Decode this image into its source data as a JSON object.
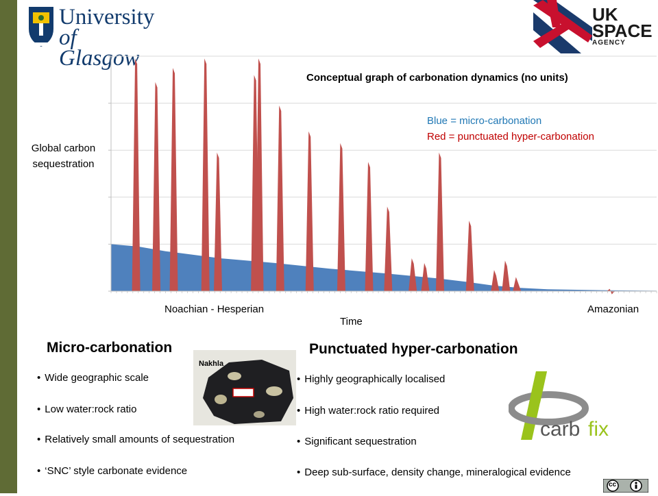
{
  "logos": {
    "uog_line1": "University",
    "uog_line2": "of Glasgow",
    "uk_space_line1": "UK",
    "uk_space_line2": "SPACE",
    "uk_space_line3": "AGENCY"
  },
  "image_labels": {
    "nakhla": "Nakhla"
  },
  "colors": {
    "sidebar": "#5f6b35",
    "micro": "#4f81bd",
    "hyper": "#c0504d",
    "legend_blue": "#1f77b4",
    "legend_red": "#c00000"
  },
  "chart_data": {
    "type": "area",
    "title": "Conceptual graph of carbonation dynamics (no units)",
    "ylabel": "Global carbon sequestration",
    "xlabel": "Time",
    "x_ticks": [
      "Noachian - Hesperian",
      "Amazonian"
    ],
    "legend": [
      "Blue = micro-carbonation",
      "Red = punctuated hyper-carbonation"
    ],
    "xlim": [
      0,
      100
    ],
    "ylim": [
      0,
      5
    ],
    "grid": true,
    "series": [
      {
        "name": "micro-carbonation",
        "points": [
          [
            0,
            1.0
          ],
          [
            5,
            0.95
          ],
          [
            10,
            0.85
          ],
          [
            20,
            0.7
          ],
          [
            30,
            0.6
          ],
          [
            40,
            0.48
          ],
          [
            50,
            0.38
          ],
          [
            60,
            0.27
          ],
          [
            65,
            0.2
          ],
          [
            70,
            0.12
          ],
          [
            75,
            0.07
          ],
          [
            80,
            0.04
          ],
          [
            90,
            0.02
          ],
          [
            100,
            0.01
          ]
        ]
      },
      {
        "name": "punctuated hyper-carbonation",
        "spikes": [
          {
            "x": 4.6,
            "y": 4.95
          },
          {
            "x": 8.3,
            "y": 4.45
          },
          {
            "x": 11.5,
            "y": 4.75
          },
          {
            "x": 17.3,
            "y": 4.95
          },
          {
            "x": 19.6,
            "y": 2.95
          },
          {
            "x": 26.4,
            "y": 4.6
          },
          {
            "x": 27.2,
            "y": 4.95
          },
          {
            "x": 31.0,
            "y": 3.95
          },
          {
            "x": 36.4,
            "y": 3.4
          },
          {
            "x": 42.2,
            "y": 3.15
          },
          {
            "x": 47.3,
            "y": 2.75
          },
          {
            "x": 50.8,
            "y": 1.8
          },
          {
            "x": 55.3,
            "y": 0.7
          },
          {
            "x": 57.6,
            "y": 0.6
          },
          {
            "x": 60.3,
            "y": 2.95
          },
          {
            "x": 65.8,
            "y": 1.5
          },
          {
            "x": 70.4,
            "y": 0.45
          },
          {
            "x": 72.4,
            "y": 0.65
          },
          {
            "x": 74.4,
            "y": 0.3
          },
          {
            "x": 91.6,
            "y": 0.05
          }
        ]
      }
    ]
  },
  "micro": {
    "heading": "Micro-carbonation",
    "items": [
      "Wide geographic scale",
      "Low water:rock ratio",
      "Relatively small amounts of sequestration",
      "‘SNC’ style carbonate evidence"
    ]
  },
  "punctuated": {
    "heading": "Punctuated hyper-carbonation",
    "items": [
      "Highly geographically localised",
      "High water:rock ratio required",
      "Significant sequestration",
      "Deep sub-surface, density change, mineralogical evidence"
    ]
  },
  "carbfix": {
    "word1": "carb",
    "word2": "fix"
  },
  "license": {
    "cc": "cc"
  }
}
